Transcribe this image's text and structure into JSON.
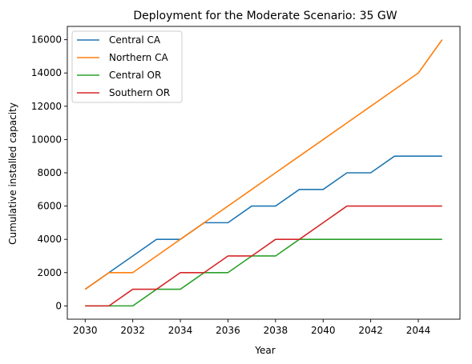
{
  "chart_data": {
    "type": "line",
    "title": "Deployment for the Moderate Scenario: 35 GW",
    "xlabel": "Year",
    "ylabel": "Cumulative installed capacity",
    "xlim": [
      2029.25,
      2045.75
    ],
    "ylim": [
      -800,
      16800
    ],
    "xticks": [
      2030,
      2032,
      2034,
      2036,
      2038,
      2040,
      2042,
      2044
    ],
    "yticks": [
      0,
      2000,
      4000,
      6000,
      8000,
      10000,
      12000,
      14000,
      16000
    ],
    "grid": false,
    "legend_position": "upper-left",
    "x": [
      2030,
      2031,
      2032,
      2033,
      2034,
      2035,
      2036,
      2037,
      2038,
      2039,
      2040,
      2041,
      2042,
      2043,
      2044,
      2045
    ],
    "series": [
      {
        "name": "Central CA",
        "color": "#1f77b4",
        "values": [
          1000,
          2000,
          3000,
          4000,
          4000,
          5000,
          5000,
          6000,
          6000,
          7000,
          7000,
          8000,
          8000,
          9000,
          9000,
          9000
        ]
      },
      {
        "name": "Northern CA",
        "color": "#ff7f0e",
        "values": [
          1000,
          2000,
          2000,
          3000,
          4000,
          5000,
          6000,
          7000,
          8000,
          9000,
          10000,
          11000,
          12000,
          13000,
          14000,
          16000
        ]
      },
      {
        "name": "Central OR",
        "color": "#2ca02c",
        "values": [
          0,
          0,
          0,
          1000,
          1000,
          2000,
          2000,
          3000,
          3000,
          4000,
          4000,
          4000,
          4000,
          4000,
          4000,
          4000
        ]
      },
      {
        "name": "Southern OR",
        "color": "#d62728",
        "values": [
          0,
          0,
          1000,
          1000,
          2000,
          2000,
          3000,
          3000,
          4000,
          4000,
          5000,
          6000,
          6000,
          6000,
          6000,
          6000
        ]
      }
    ]
  }
}
